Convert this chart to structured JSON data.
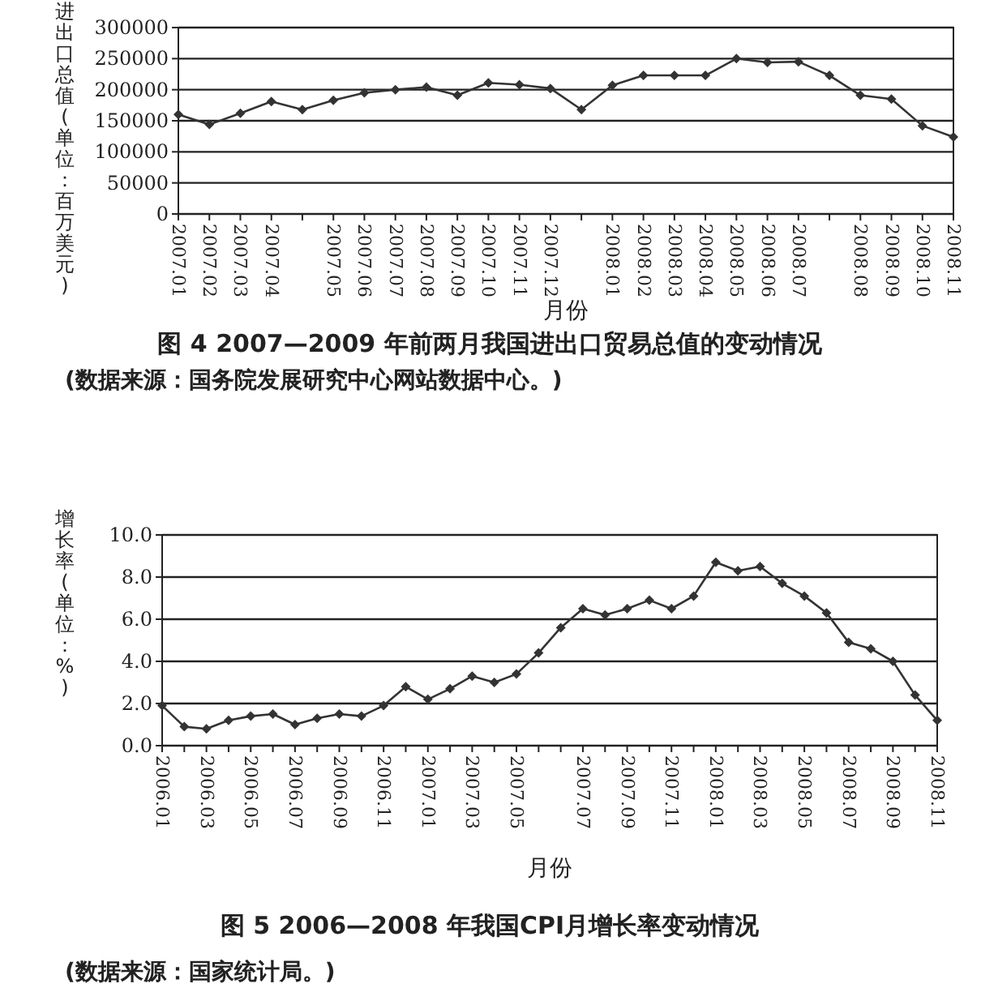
{
  "chart_data": [
    {
      "type": "line",
      "title": "图 4  2007—2009 年前两月我国进出口贸易总值的变动情况",
      "xlabel": "月份",
      "ylabel": "进出口总值(单位：百万美元)",
      "annotations": [
        "(数据来源：国务院发展研究中心网站数据中心。)"
      ],
      "color": "#333333",
      "marker": "diamond",
      "grid": "y",
      "categories": [
        "2007.01",
        "2007.02",
        "2007.03",
        "2007.04",
        null,
        "2007.05",
        "2007.06",
        "2007.07",
        "2007.08",
        "2007.09",
        "2007.10",
        "2007.11",
        "2007.12",
        null,
        "2008.01",
        "2008.02",
        "2008.03",
        "2008.04",
        "2008.05",
        "2008.06",
        "2008.07",
        null,
        "2008.08",
        "2008.09",
        "2008.10",
        "2008.11"
      ],
      "values": [
        160000,
        144000,
        162000,
        181000,
        168000,
        183000,
        195000,
        200000,
        204000,
        191000,
        211000,
        208000,
        202000,
        168000,
        207000,
        223000,
        223000,
        223000,
        250000,
        244000,
        245000,
        223000,
        191000,
        185000,
        142000,
        124000
      ],
      "ylim": [
        0,
        300000
      ],
      "yticks": [
        0,
        50000,
        100000,
        150000,
        200000,
        250000,
        300000
      ]
    },
    {
      "type": "line",
      "title": "图 5  2006—2008 年我国CPI月增长率变动情况",
      "xlabel": "月份",
      "ylabel": "增长率(单位：%)",
      "annotations": [
        "(数据来源：国家统计局。)"
      ],
      "color": "#333333",
      "marker": "diamond",
      "grid": "y",
      "categories": [
        "2006.01",
        null,
        "2006.03",
        null,
        "2006.05",
        null,
        "2006.07",
        null,
        "2006.09",
        null,
        "2006.11",
        null,
        "2007.01",
        null,
        "2007.03",
        null,
        "2007.05",
        null,
        null,
        "2007.07",
        null,
        "2007.09",
        null,
        "2007.11",
        null,
        "2008.01",
        null,
        "2008.03",
        null,
        "2008.05",
        null,
        "2008.07",
        null,
        "2008.09",
        null,
        "2008.11"
      ],
      "values": [
        1.9,
        0.9,
        0.8,
        1.2,
        1.4,
        1.5,
        1.0,
        1.3,
        1.5,
        1.4,
        1.9,
        2.8,
        2.2,
        2.7,
        3.3,
        3.0,
        3.4,
        4.4,
        5.6,
        6.5,
        6.2,
        6.5,
        6.9,
        6.5,
        7.1,
        8.7,
        8.3,
        8.5,
        7.7,
        7.1,
        6.3,
        4.9,
        4.6,
        4.0,
        2.4,
        1.2
      ],
      "ylim": [
        0,
        10
      ],
      "yticks": [
        {
          "value": 0,
          "label": "0.0"
        },
        {
          "value": 2,
          "label": "2.0"
        },
        {
          "value": 4,
          "label": "4.0"
        },
        {
          "value": 6,
          "label": "6.0"
        },
        {
          "value": 8,
          "label": "8.0"
        },
        {
          "value": 10,
          "label": "10.0"
        }
      ]
    }
  ]
}
